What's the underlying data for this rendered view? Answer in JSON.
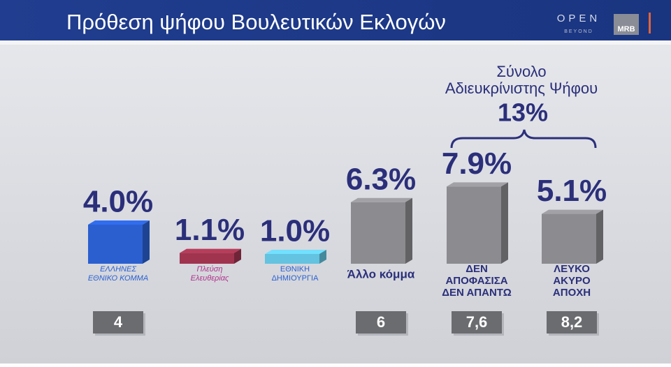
{
  "header": {
    "title": "Πρόθεση ψήφου Βουλευτικών Εκλογών",
    "logo": "OPEN",
    "logo_sub": "BEYOND",
    "pollster": "MRB"
  },
  "chart_data": {
    "type": "bar",
    "categories": [
      [
        "ΕΛΛΗΝΕΣ",
        "ΕΘΝΙΚΟ ΚΟΜΜΑ"
      ],
      [
        "Πλεύση",
        "Ελευθερίας"
      ],
      [
        "ΕΘΝΙΚΗ",
        "ΔΗΜΙΟΥΡΓΙΑ"
      ],
      [
        "Άλλο κόμμα"
      ],
      [
        "ΔΕΝ",
        "ΑΠΟΦΑΣΙΣΑ",
        "ΔΕΝ ΑΠΑΝΤΩ"
      ],
      [
        "ΛΕΥΚΟ",
        "ΑΚΥΡΟ",
        "ΑΠΟΧΗ"
      ]
    ],
    "values": [
      4.0,
      1.1,
      1.0,
      6.3,
      7.9,
      5.1
    ],
    "value_labels": [
      "4.0%",
      "1.1%",
      "1.0%",
      "6.3%",
      "7.9%",
      "5.1%"
    ],
    "colors": [
      "#2b5fd0",
      "#a0344f",
      "#63c3e0",
      "#8c8c90",
      "#8c8c90",
      "#8c8c90"
    ],
    "previous_values": [
      4,
      null,
      null,
      6,
      7.6,
      8.2
    ],
    "previous_value_labels": [
      "4",
      null,
      null,
      "6",
      "7,6",
      "8,2"
    ],
    "annotation": {
      "lines": [
        "Σύνολο",
        "Αδιευκρίνιστης Ψήφου"
      ],
      "value": 13,
      "value_label": "13%"
    }
  }
}
